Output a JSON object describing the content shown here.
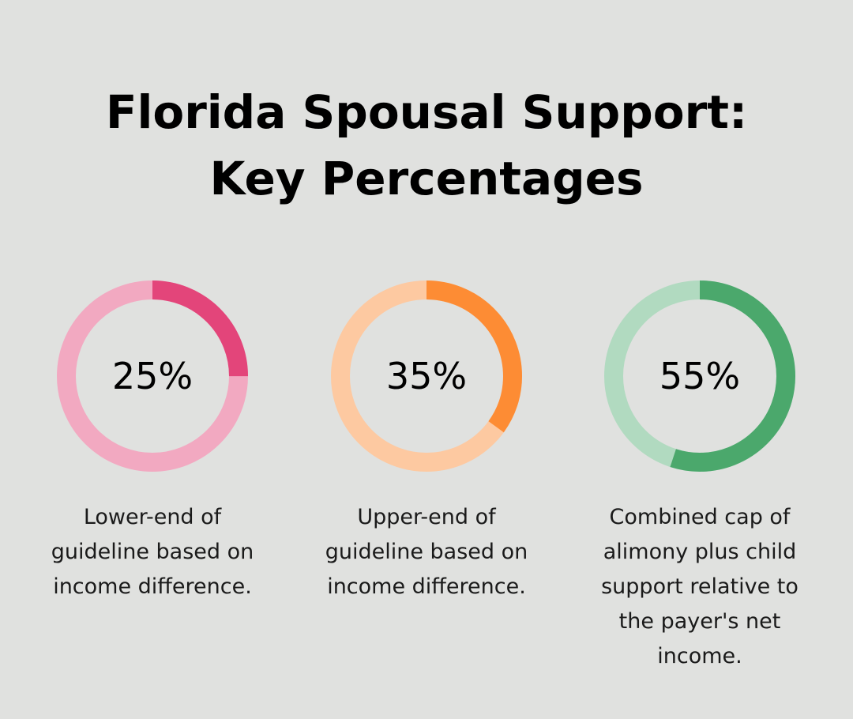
{
  "title": {
    "line1": "Florida Spousal Support:",
    "line2": "Key Percentages"
  },
  "chart_data": {
    "type": "pie",
    "title": "Florida Spousal Support: Key Percentages",
    "items": [
      {
        "label": "25%",
        "value": 25,
        "description": "Lower-end of guideline based on income difference.",
        "color": "#e3457a",
        "track_color": "#f2a9c1"
      },
      {
        "label": "35%",
        "value": 35,
        "description": "Upper-end of guideline based on income difference.",
        "color": "#fd8c34",
        "track_color": "#fdc9a1"
      },
      {
        "label": "55%",
        "value": 55,
        "description": "Combined cap of alimony plus child support relative to the payer's net income.",
        "color": "#4ba86c",
        "track_color": "#b1dac0"
      }
    ]
  }
}
